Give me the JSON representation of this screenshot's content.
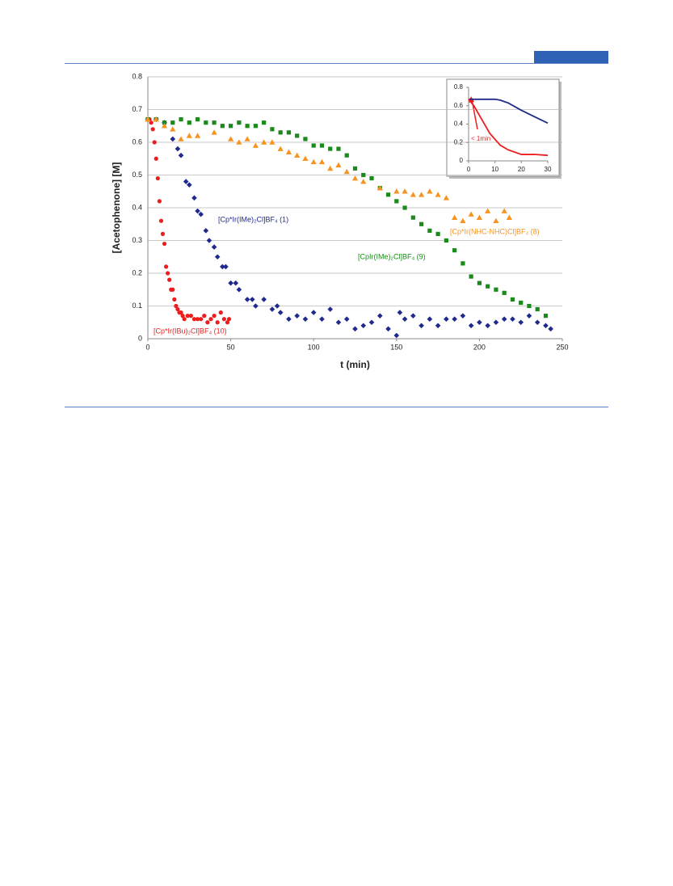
{
  "chart_data": [
    {
      "type": "scatter",
      "xlabel": "t (min)",
      "ylabel": "[Acetophenone] [M]",
      "xlim": [
        0,
        250
      ],
      "ylim": [
        0,
        0.8
      ],
      "xticks": [
        0,
        50,
        100,
        150,
        200,
        250
      ],
      "yticks": [
        0,
        0.1,
        0.2,
        0.3,
        0.4,
        0.5,
        0.6,
        0.7,
        0.8
      ],
      "grid": true,
      "series": [
        {
          "name": "[Cp*Ir(IBu)₂Cl]BF₄ (10)",
          "color": "#ee1c1c",
          "marker": "circle",
          "x": [
            0,
            1,
            2,
            3,
            4,
            5,
            6,
            7,
            8,
            9,
            10,
            11,
            12,
            13,
            14,
            15,
            16,
            17,
            18,
            19,
            20,
            21,
            22,
            24,
            26,
            28,
            30,
            32,
            34,
            36,
            38,
            40,
            42,
            44,
            46,
            48,
            49
          ],
          "values": [
            0.67,
            0.67,
            0.66,
            0.64,
            0.6,
            0.55,
            0.49,
            0.42,
            0.36,
            0.32,
            0.29,
            0.22,
            0.2,
            0.18,
            0.15,
            0.15,
            0.12,
            0.1,
            0.09,
            0.08,
            0.08,
            0.07,
            0.06,
            0.07,
            0.07,
            0.06,
            0.06,
            0.06,
            0.07,
            0.05,
            0.06,
            0.07,
            0.05,
            0.08,
            0.06,
            0.05,
            0.06
          ]
        },
        {
          "name": "[Cp*Ir(IMe)₂Cl]BF₄ (1)",
          "color": "#1f2a8c",
          "marker": "diamond",
          "x": [
            0,
            5,
            10,
            15,
            18,
            20,
            23,
            25,
            28,
            30,
            32,
            35,
            37,
            40,
            42,
            45,
            47,
            50,
            53,
            55,
            60,
            63,
            65,
            70,
            75,
            78,
            80,
            85,
            90,
            95,
            100,
            105,
            110,
            115,
            120,
            125,
            130,
            135,
            140,
            145,
            150,
            152,
            155,
            160,
            165,
            170,
            175,
            180,
            185,
            190,
            195,
            200,
            205,
            210,
            215,
            220,
            225,
            230,
            235,
            240,
            243
          ],
          "values": [
            0.67,
            0.67,
            0.66,
            0.61,
            0.58,
            0.56,
            0.48,
            0.47,
            0.43,
            0.39,
            0.38,
            0.33,
            0.3,
            0.28,
            0.25,
            0.22,
            0.22,
            0.17,
            0.17,
            0.15,
            0.12,
            0.12,
            0.1,
            0.12,
            0.09,
            0.1,
            0.08,
            0.06,
            0.07,
            0.06,
            0.08,
            0.06,
            0.09,
            0.05,
            0.06,
            0.03,
            0.04,
            0.05,
            0.07,
            0.03,
            0.01,
            0.08,
            0.06,
            0.07,
            0.04,
            0.06,
            0.04,
            0.06,
            0.06,
            0.07,
            0.04,
            0.05,
            0.04,
            0.05,
            0.06,
            0.06,
            0.05,
            0.07,
            0.05,
            0.04,
            0.03
          ]
        },
        {
          "name": "[CpIr(IMe)₂Cl]BF₄ (9)",
          "color": "#1a8a1a",
          "marker": "square",
          "x": [
            0,
            5,
            10,
            15,
            20,
            25,
            30,
            35,
            40,
            45,
            50,
            55,
            60,
            65,
            70,
            75,
            80,
            85,
            90,
            95,
            100,
            105,
            110,
            115,
            120,
            125,
            130,
            135,
            140,
            145,
            150,
            155,
            160,
            165,
            170,
            175,
            180,
            185,
            190,
            195,
            200,
            205,
            210,
            215,
            220,
            225,
            230,
            235,
            240
          ],
          "values": [
            0.67,
            0.67,
            0.66,
            0.66,
            0.67,
            0.66,
            0.67,
            0.66,
            0.66,
            0.65,
            0.65,
            0.66,
            0.65,
            0.65,
            0.66,
            0.64,
            0.63,
            0.63,
            0.62,
            0.61,
            0.59,
            0.59,
            0.58,
            0.58,
            0.56,
            0.52,
            0.5,
            0.49,
            0.46,
            0.44,
            0.42,
            0.4,
            0.37,
            0.35,
            0.33,
            0.32,
            0.3,
            0.27,
            0.23,
            0.19,
            0.17,
            0.16,
            0.15,
            0.14,
            0.12,
            0.11,
            0.1,
            0.09,
            0.07
          ]
        },
        {
          "name": "[Cp*Ir(NHC-NHC)Cl]BF₄ (8)",
          "color": "#f7931e",
          "marker": "triangle",
          "x": [
            0,
            5,
            10,
            15,
            20,
            25,
            30,
            40,
            50,
            55,
            60,
            65,
            70,
            75,
            80,
            85,
            90,
            95,
            100,
            105,
            110,
            115,
            120,
            125,
            130,
            140,
            150,
            155,
            160,
            165,
            170,
            175,
            180,
            185,
            190,
            195,
            200,
            205,
            210,
            215,
            218
          ],
          "values": [
            0.67,
            0.67,
            0.65,
            0.64,
            0.61,
            0.62,
            0.62,
            0.63,
            0.61,
            0.6,
            0.61,
            0.59,
            0.6,
            0.6,
            0.58,
            0.57,
            0.56,
            0.55,
            0.54,
            0.54,
            0.52,
            0.53,
            0.51,
            0.49,
            0.48,
            0.46,
            0.45,
            0.45,
            0.44,
            0.44,
            0.45,
            0.44,
            0.43,
            0.37,
            0.36,
            0.38,
            0.37,
            0.39,
            0.36,
            0.39,
            0.37
          ]
        }
      ]
    },
    {
      "type": "line",
      "annotation": "< 1min",
      "xlim": [
        0,
        30
      ],
      "ylim": [
        0,
        0.8
      ],
      "xticks": [
        0,
        10,
        20,
        30
      ],
      "yticks": [
        0,
        0.2,
        0.4,
        0.6,
        0.8
      ],
      "grid": false,
      "series": [
        {
          "color": "#1f2a8c",
          "x": [
            0,
            5,
            10,
            12,
            15,
            20,
            25,
            30
          ],
          "values": [
            0.67,
            0.67,
            0.67,
            0.66,
            0.63,
            0.55,
            0.48,
            0.41
          ]
        },
        {
          "color": "#ee1c1c",
          "x": [
            0,
            2,
            5,
            8,
            12,
            15,
            20,
            25,
            30
          ],
          "values": [
            0.67,
            0.6,
            0.45,
            0.3,
            0.17,
            0.12,
            0.07,
            0.07,
            0.06
          ]
        }
      ]
    }
  ]
}
